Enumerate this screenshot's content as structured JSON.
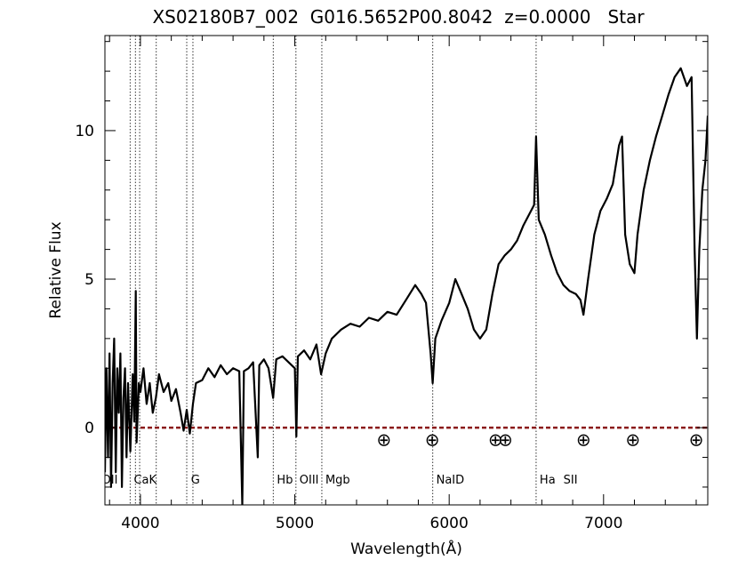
{
  "chart_data": {
    "type": "line",
    "title": "XS02180B7_002  G016.5652P00.8042  z=0.0000   Star",
    "x_label": "Wavelength(Å)",
    "y_label": "Relative Flux",
    "xlim": [
      3770,
      7675
    ],
    "ylim": [
      -2.6,
      13.2
    ],
    "xticks": [
      4000,
      5000,
      6000,
      7000
    ],
    "yticks": [
      0,
      5,
      10
    ],
    "xminorticks": [
      3800,
      4200,
      4400,
      4600,
      4800,
      5200,
      5400,
      5600,
      5800,
      6200,
      6400,
      6600,
      6800,
      7200,
      7400,
      7600
    ],
    "yminorticks": [
      -2,
      -1,
      1,
      2,
      3,
      4,
      6,
      7,
      8,
      9,
      11,
      12,
      13
    ],
    "line_color": "#000000",
    "zero_line_color": "#8b1a1a",
    "marker_line_color": "#555555",
    "series": [
      {
        "name": "Flux",
        "color": "#000000",
        "x": [
          3770,
          3780,
          3790,
          3800,
          3810,
          3820,
          3830,
          3840,
          3850,
          3860,
          3870,
          3880,
          3890,
          3900,
          3910,
          3920,
          3935,
          3950,
          3960,
          3970,
          3975,
          3990,
          4000,
          4020,
          4040,
          4060,
          4080,
          4100,
          4120,
          4150,
          4180,
          4200,
          4230,
          4260,
          4280,
          4300,
          4320,
          4340,
          4360,
          4400,
          4440,
          4480,
          4520,
          4560,
          4600,
          4640,
          4660,
          4670,
          4700,
          4730,
          4760,
          4770,
          4800,
          4830,
          4860,
          4880,
          4920,
          4960,
          5000,
          5010,
          5020,
          5060,
          5100,
          5140,
          5170,
          5200,
          5240,
          5300,
          5360,
          5420,
          5480,
          5540,
          5600,
          5660,
          5720,
          5780,
          5820,
          5850,
          5880,
          5893,
          5910,
          5950,
          6000,
          6040,
          6080,
          6120,
          6160,
          6200,
          6240,
          6280,
          6320,
          6360,
          6400,
          6440,
          6480,
          6520,
          6550,
          6563,
          6580,
          6620,
          6660,
          6700,
          6740,
          6780,
          6820,
          6850,
          6870,
          6900,
          6940,
          6980,
          7020,
          7060,
          7100,
          7120,
          7140,
          7170,
          7200,
          7220,
          7260,
          7300,
          7340,
          7380,
          7420,
          7460,
          7500,
          7540,
          7570,
          7590,
          7605,
          7620,
          7640,
          7660,
          7675
        ],
        "values": [
          -1.5,
          2.0,
          -1.0,
          2.5,
          -2.0,
          1.5,
          3.0,
          -1.5,
          2.0,
          0.5,
          2.5,
          -2.0,
          1.0,
          2.0,
          -1.0,
          1.5,
          -0.8,
          1.8,
          0.2,
          4.6,
          -0.5,
          1.5,
          1.2,
          2.0,
          0.8,
          1.5,
          0.5,
          1.0,
          1.8,
          1.2,
          1.5,
          0.9,
          1.3,
          0.5,
          -0.1,
          0.6,
          -0.2,
          0.8,
          1.5,
          1.6,
          2.0,
          1.7,
          2.1,
          1.8,
          2.0,
          1.9,
          -2.6,
          1.9,
          2.0,
          2.2,
          -1.0,
          2.1,
          2.3,
          2.0,
          1.0,
          2.3,
          2.4,
          2.2,
          2.0,
          -0.3,
          2.4,
          2.6,
          2.3,
          2.8,
          1.8,
          2.5,
          3.0,
          3.3,
          3.5,
          3.4,
          3.7,
          3.6,
          3.9,
          3.8,
          4.3,
          4.8,
          4.5,
          4.2,
          2.5,
          1.5,
          3.0,
          3.6,
          4.2,
          5.0,
          4.5,
          4.0,
          3.3,
          3.0,
          3.3,
          4.5,
          5.5,
          5.8,
          6.0,
          6.3,
          6.8,
          7.2,
          7.5,
          9.8,
          7.0,
          6.5,
          5.8,
          5.2,
          4.8,
          4.6,
          4.5,
          4.3,
          3.8,
          5.0,
          6.5,
          7.3,
          7.7,
          8.2,
          9.5,
          9.8,
          6.5,
          5.5,
          5.2,
          6.5,
          8.0,
          9.0,
          9.8,
          10.5,
          11.2,
          11.8,
          12.1,
          11.5,
          11.8,
          6.0,
          3.0,
          6.0,
          8.0,
          9.0,
          10.5
        ]
      }
    ],
    "marker_lines": [
      3934,
      3968,
      3995,
      4102,
      4300,
      4340,
      4861,
      5007,
      5175,
      5893,
      6563
    ],
    "line_labels": [
      {
        "text": "OII",
        "x": 3727
      },
      {
        "text": "CaK",
        "x": 3934
      },
      {
        "text": "G",
        "x": 4304
      },
      {
        "text": "Hb",
        "x": 4861
      },
      {
        "text": "OIII",
        "x": 5007
      },
      {
        "text": "Mgb",
        "x": 5175
      },
      {
        "text": "NaID",
        "x": 5893
      },
      {
        "text": "Ha",
        "x": 6563
      },
      {
        "text": "SII",
        "x": 6717
      }
    ],
    "telluric": {
      "symbol": "⊕",
      "y": -0.4,
      "x": [
        5577,
        5890,
        6300,
        6364,
        6870,
        7190,
        7600
      ]
    }
  }
}
